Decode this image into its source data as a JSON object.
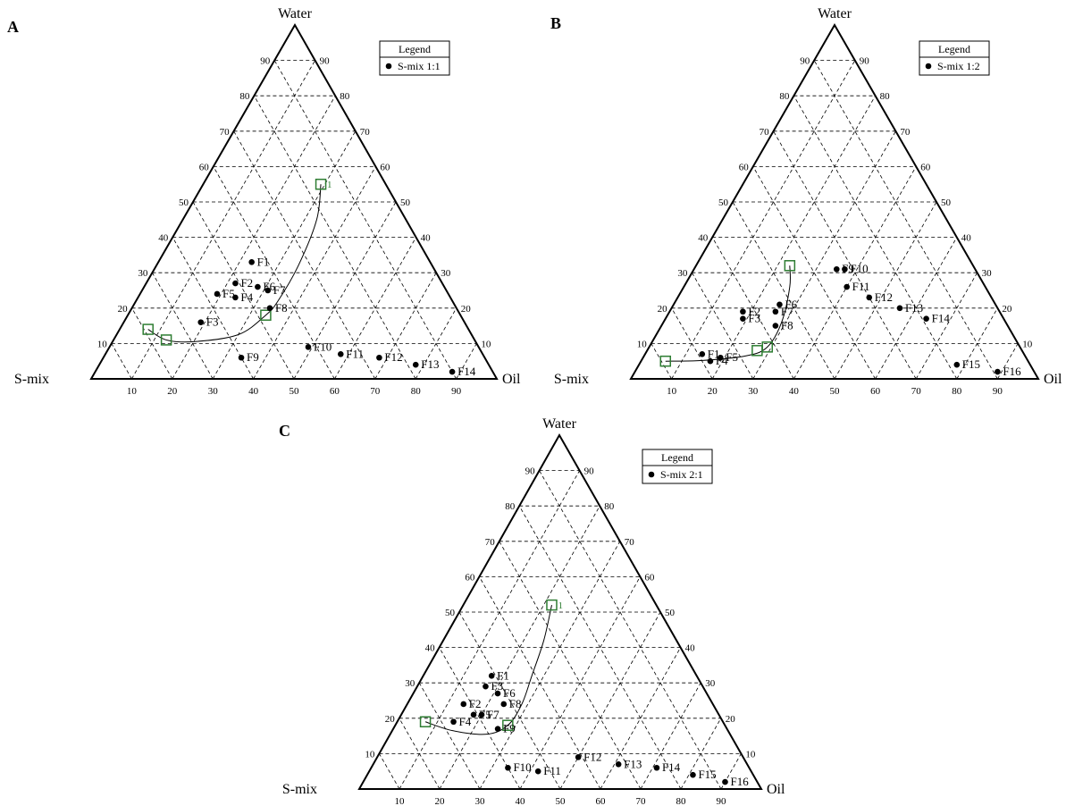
{
  "chart_data": [
    {
      "type": "scatter",
      "subtype": "ternary",
      "panel": "A",
      "vertices": {
        "top": "Water",
        "left": "S-mix",
        "right": "Oil"
      },
      "ticks": [
        10,
        20,
        30,
        40,
        50,
        60,
        70,
        80,
        90
      ],
      "grid": true,
      "legend": {
        "title": "Legend",
        "entry": "S-mix 1:1",
        "placement": "top-right"
      },
      "points": [
        {
          "label": "F1",
          "x": 23,
          "y": 33
        },
        {
          "label": "F2",
          "x": 22,
          "y": 27
        },
        {
          "label": "F3",
          "x": 19,
          "y": 16
        },
        {
          "label": "F4",
          "x": 24,
          "y": 23
        },
        {
          "label": "F5",
          "x": 19,
          "y": 24
        },
        {
          "label": "F6",
          "x": 28,
          "y": 26
        },
        {
          "label": "F7",
          "x": 31,
          "y": 25
        },
        {
          "label": "F8",
          "x": 34,
          "y": 20
        },
        {
          "label": "F9",
          "x": 34,
          "y": 6
        },
        {
          "label": "F10",
          "x": 49,
          "y": 9
        },
        {
          "label": "F11",
          "x": 58,
          "y": 7
        },
        {
          "label": "F12",
          "x": 68,
          "y": 6
        },
        {
          "label": "F13",
          "x": 78,
          "y": 4
        },
        {
          "label": "F14",
          "x": 88,
          "y": 2
        }
      ],
      "boundary": [
        {
          "label": "1",
          "x": 29,
          "y": 55
        },
        {
          "label": "",
          "x": 34,
          "y": 18
        },
        {
          "label": "",
          "x": 13,
          "y": 11
        },
        {
          "label": "",
          "x": 7,
          "y": 14
        }
      ],
      "curve": [
        [
          29,
          55
        ],
        [
          33,
          45
        ],
        [
          35,
          32
        ],
        [
          35,
          22
        ],
        [
          34,
          18
        ],
        [
          30,
          12.5
        ],
        [
          20,
          10.5
        ],
        [
          13,
          11
        ],
        [
          7,
          14
        ]
      ]
    },
    {
      "type": "scatter",
      "subtype": "ternary",
      "panel": "B",
      "vertices": {
        "top": "Water",
        "left": "S-mix",
        "right": "Oil"
      },
      "ticks": [
        10,
        20,
        30,
        40,
        50,
        60,
        70,
        80,
        90
      ],
      "grid": true,
      "legend": {
        "title": "Legend",
        "entry": "S-mix 1:2",
        "placement": "top-right"
      },
      "points": [
        {
          "label": "F1",
          "x": 14,
          "y": 7
        },
        {
          "label": "F2",
          "x": 18,
          "y": 19
        },
        {
          "label": "F3",
          "x": 19,
          "y": 17
        },
        {
          "label": "F4",
          "x": 17,
          "y": 5
        },
        {
          "label": "F5",
          "x": 19,
          "y": 6
        },
        {
          "label": "F6",
          "x": 26,
          "y": 21
        },
        {
          "label": "F7",
          "x": 26,
          "y": 19
        },
        {
          "label": "F8",
          "x": 28,
          "y": 15
        },
        {
          "label": "F9",
          "x": 35,
          "y": 31
        },
        {
          "label": "F10",
          "x": 37,
          "y": 31
        },
        {
          "label": "F11",
          "x": 40,
          "y": 26
        },
        {
          "label": "F12",
          "x": 47,
          "y": 23
        },
        {
          "label": "F13",
          "x": 56,
          "y": 20
        },
        {
          "label": "F14",
          "x": 64,
          "y": 17
        },
        {
          "label": "F15",
          "x": 78,
          "y": 4
        },
        {
          "label": "F16",
          "x": 89,
          "y": 2
        }
      ],
      "boundary": [
        {
          "label": "",
          "x": 23,
          "y": 32
        },
        {
          "label": "",
          "x": 27,
          "y": 8
        },
        {
          "label": "",
          "x": 6,
          "y": 5
        },
        {
          "label": "",
          "x": 29,
          "y": 9
        }
      ],
      "curve": [
        [
          23,
          32
        ],
        [
          26,
          26
        ],
        [
          29,
          16
        ],
        [
          29,
          9
        ],
        [
          25,
          6.5
        ],
        [
          15,
          5.2
        ],
        [
          6,
          5
        ]
      ]
    },
    {
      "type": "scatter",
      "subtype": "ternary",
      "panel": "C",
      "vertices": {
        "top": "Water",
        "left": "S-mix",
        "right": "Oil"
      },
      "ticks": [
        10,
        20,
        30,
        40,
        50,
        60,
        70,
        80,
        90
      ],
      "grid": true,
      "legend": {
        "title": "Legend",
        "entry": "S-mix 2:1",
        "placement": "top-right"
      },
      "points": [
        {
          "label": "F1",
          "x": 17,
          "y": 32
        },
        {
          "label": "F2",
          "x": 14,
          "y": 24
        },
        {
          "label": "F3",
          "x": 17,
          "y": 29
        },
        {
          "label": "F4",
          "x": 14,
          "y": 19
        },
        {
          "label": "F5",
          "x": 18,
          "y": 21
        },
        {
          "label": "F6",
          "x": 21,
          "y": 27
        },
        {
          "label": "F7",
          "x": 20,
          "y": 21
        },
        {
          "label": "F8",
          "x": 24,
          "y": 24
        },
        {
          "label": "F9",
          "x": 26,
          "y": 17
        },
        {
          "label": "F10",
          "x": 34,
          "y": 6
        },
        {
          "label": "F11",
          "x": 42,
          "y": 5
        },
        {
          "label": "F12",
          "x": 50,
          "y": 9
        },
        {
          "label": "F13",
          "x": 61,
          "y": 7
        },
        {
          "label": "F14",
          "x": 71,
          "y": 6
        },
        {
          "label": "F15",
          "x": 81,
          "y": 4
        },
        {
          "label": "F16",
          "x": 90,
          "y": 2
        }
      ],
      "boundary": [
        {
          "label": "1",
          "x": 22,
          "y": 52
        },
        {
          "label": "",
          "x": 28,
          "y": 18
        },
        {
          "label": "",
          "x": 7,
          "y": 19
        }
      ],
      "curve": [
        [
          22,
          52
        ],
        [
          25,
          42
        ],
        [
          27,
          32
        ],
        [
          28.5,
          24
        ],
        [
          28,
          18
        ],
        [
          24,
          15.5
        ],
        [
          15,
          16.5
        ],
        [
          7,
          19
        ]
      ]
    }
  ]
}
